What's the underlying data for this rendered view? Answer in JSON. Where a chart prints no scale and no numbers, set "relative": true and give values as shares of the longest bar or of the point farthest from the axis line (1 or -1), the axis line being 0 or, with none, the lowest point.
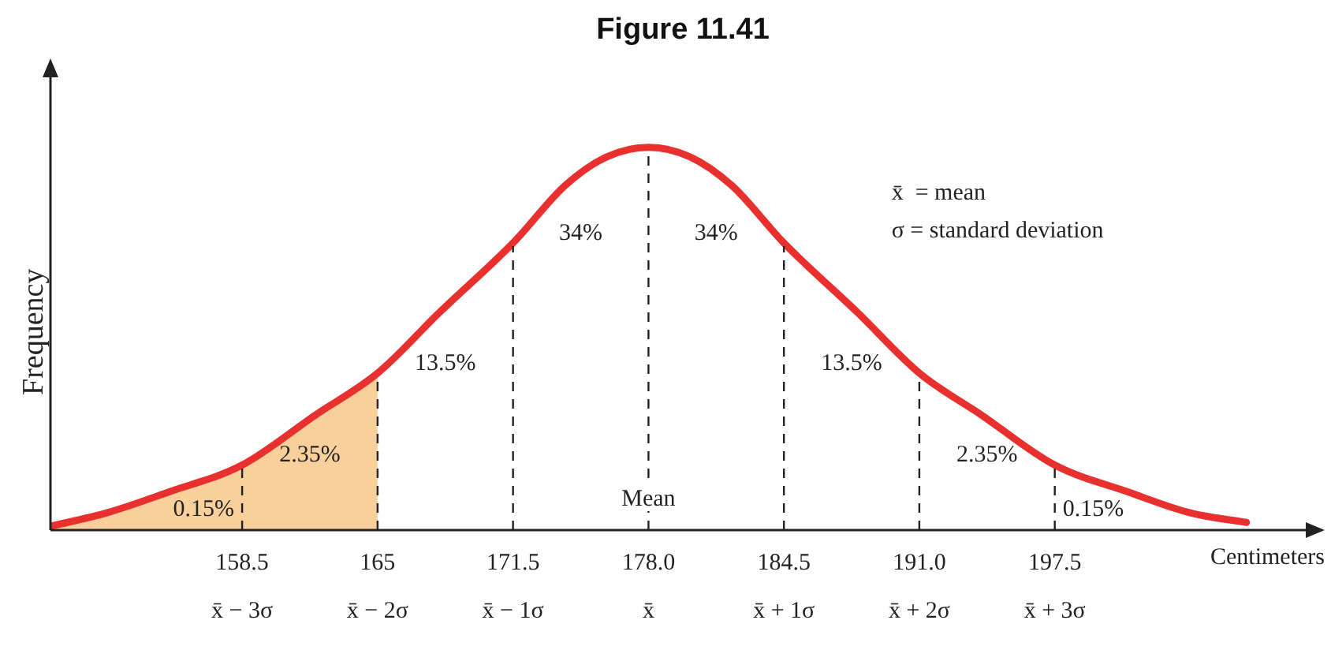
{
  "chart_data": {
    "type": "line",
    "title": "Figure 11.41",
    "ylabel": "Frequency",
    "xlabel": "Centimeters",
    "relative": true,
    "xlim": [
      149.3,
      210
    ],
    "xticks": [
      158.5,
      165,
      171.5,
      {
        "value": 178,
        "label": "178.0"
      },
      184.5,
      {
        "value": 191,
        "label": "191.0"
      },
      197.5
    ],
    "series": [
      {
        "type": "area",
        "color": "#f9cf9c",
        "x": [
          149.3,
          152,
          155,
          158.5,
          162,
          165
        ],
        "values": [
          0.01,
          0.045,
          0.1,
          0.17,
          0.3,
          0.41
        ]
      },
      {
        "color": "#e8302e",
        "x": [
          149.3,
          152,
          155,
          158.5,
          162,
          165,
          168,
          171.5,
          174,
          176,
          178,
          180,
          182,
          184.5,
          188,
          191,
          194,
          197.5,
          201,
          204,
          206.7
        ],
        "values": [
          0.01,
          0.045,
          0.1,
          0.17,
          0.3,
          0.41,
          0.57,
          0.75,
          0.9,
          0.975,
          1,
          0.975,
          0.9,
          0.75,
          0.57,
          0.41,
          0.3,
          0.17,
          0.1,
          0.045,
          0.02
        ]
      }
    ],
    "ref_lines": [
      {
        "axis": "x",
        "value": 158.5,
        "label": null,
        "line_style": "dashed"
      },
      {
        "axis": "x",
        "value": 165,
        "label": null,
        "line_style": "dashed"
      },
      {
        "axis": "x",
        "value": 171.5,
        "label": null,
        "line_style": "dashed"
      },
      {
        "axis": "x",
        "value": 178,
        "label": "Mean",
        "line_style": "dashed"
      },
      {
        "axis": "x",
        "value": 184.5,
        "label": null,
        "line_style": "dashed"
      },
      {
        "axis": "x",
        "value": 191,
        "label": null,
        "line_style": "dashed"
      },
      {
        "axis": "x",
        "value": 197.5,
        "label": null,
        "line_style": "dashed"
      }
    ],
    "annotations": [
      "0.15%",
      "2.35%",
      "13.5%",
      "34%",
      "34%",
      "13.5%",
      "2.35%",
      "0.15%",
      "x̄  = mean",
      "σ = standard deviation",
      "x̄ − 3σ",
      "x̄ − 2σ",
      "x̄ − 1σ",
      "x̄",
      "x̄ + 1σ",
      "x̄ + 2σ",
      "x̄ + 3σ"
    ]
  }
}
